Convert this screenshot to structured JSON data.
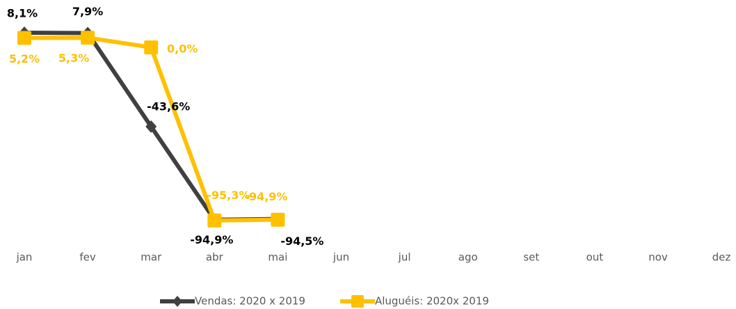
{
  "chart_data": {
    "type": "line",
    "categories": [
      "jan",
      "fev",
      "mar",
      "abr",
      "mai",
      "jun",
      "jul",
      "ago",
      "set",
      "out",
      "nov",
      "dez"
    ],
    "ylim": [
      -100,
      10
    ],
    "series": [
      {
        "name": "Vendas: 2020 x 2019",
        "color": "#404040",
        "marker": "diamond",
        "values": [
          8.1,
          7.9,
          -43.6,
          -94.9,
          -94.5,
          null,
          null,
          null,
          null,
          null,
          null,
          null
        ],
        "value_labels": [
          "8,1%",
          "7,9%",
          "-43,6%",
          "-94,9%",
          "-94,5%",
          null,
          null,
          null,
          null,
          null,
          null,
          null
        ]
      },
      {
        "name": "Aluguéis: 2020x 2019",
        "color": "#FFC000",
        "marker": "square",
        "values": [
          5.2,
          5.3,
          0.0,
          -95.3,
          -94.9,
          null,
          null,
          null,
          null,
          null,
          null,
          null
        ],
        "value_labels": [
          "5,2%",
          "5,3%",
          "0,0%",
          "-95,3%",
          "-94,9%",
          null,
          null,
          null,
          null,
          null,
          null,
          null
        ]
      }
    ],
    "legend": "bottom"
  }
}
